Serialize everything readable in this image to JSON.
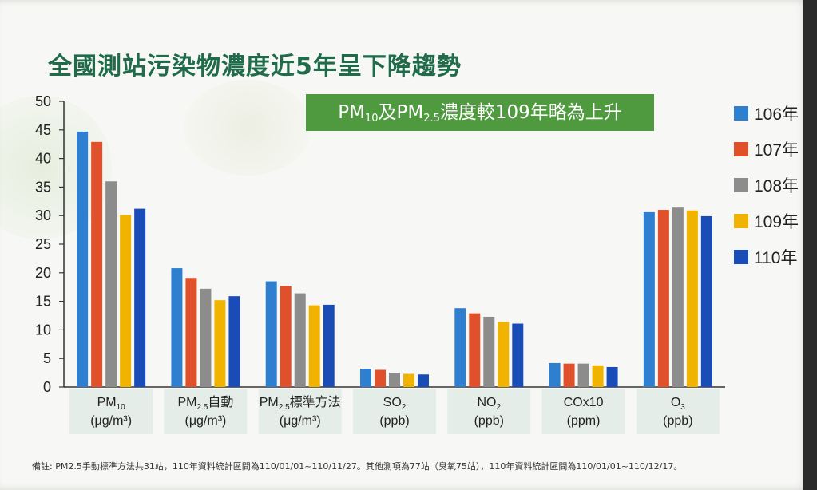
{
  "title": "全國測站污染物濃度近5年呈下降趨勢",
  "callout": {
    "pre": "PM",
    "sub1": "10",
    "mid": "及PM",
    "sub2": "2.5",
    "post": "濃度較109年略為上升"
  },
  "footnote": "備註: PM2.5手動標準方法共31站，110年資料統計區間為110/01/01~110/11/27。其他測項為77站（臭氧75站），110年資料統計區間為110/01/01~110/12/17。",
  "chart_data": {
    "type": "bar",
    "ylim": [
      0,
      50
    ],
    "yticks": [
      0,
      5,
      10,
      15,
      20,
      25,
      30,
      35,
      40,
      45,
      50
    ],
    "categories": [
      {
        "main": "PM",
        "sub": "10",
        "suffix": "",
        "unit": "(μg/m³)"
      },
      {
        "main": "PM",
        "sub": "2.5",
        "suffix": "自動",
        "unit": "(μg/m³)"
      },
      {
        "main": "PM",
        "sub": "2.5",
        "suffix": "標準方法",
        "unit": "(μg/m³)"
      },
      {
        "main": "SO",
        "sub": "2",
        "suffix": "",
        "unit": "(ppb)"
      },
      {
        "main": "NO",
        "sub": "2",
        "suffix": "",
        "unit": "(ppb)"
      },
      {
        "main": "COx10",
        "sub": "",
        "suffix": "",
        "unit": "(ppm)"
      },
      {
        "main": "O",
        "sub": "3",
        "suffix": "",
        "unit": "(ppb)"
      }
    ],
    "series": [
      {
        "name": "106年",
        "color": "#2f7fd0",
        "values": [
          44.7,
          20.8,
          18.5,
          3.2,
          13.8,
          4.2,
          30.6
        ]
      },
      {
        "name": "107年",
        "color": "#e0502a",
        "values": [
          42.9,
          19.1,
          17.7,
          3.0,
          12.9,
          4.1,
          31.0
        ]
      },
      {
        "name": "108年",
        "color": "#8c8c8c",
        "values": [
          36.0,
          17.2,
          16.4,
          2.5,
          12.3,
          4.1,
          31.4
        ]
      },
      {
        "name": "109年",
        "color": "#f0b400",
        "values": [
          30.1,
          15.2,
          14.3,
          2.3,
          11.4,
          3.8,
          30.9
        ]
      },
      {
        "name": "110年",
        "color": "#1a4cb8",
        "values": [
          31.2,
          15.9,
          14.4,
          2.2,
          11.1,
          3.5,
          29.9
        ]
      }
    ]
  }
}
